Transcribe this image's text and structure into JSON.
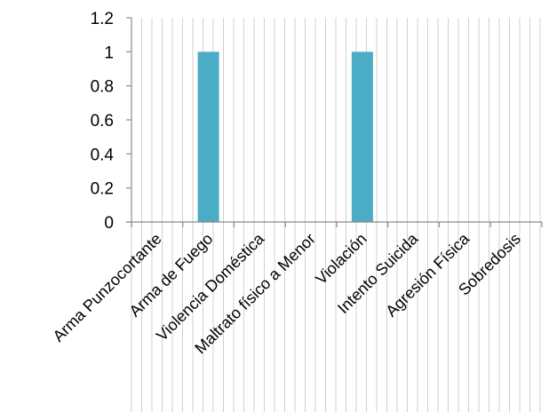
{
  "chart_data": {
    "type": "bar",
    "categories": [
      "Arma Punzocortante",
      "Arma de Fuego",
      "Violencia Doméstica",
      "Maltrato físico a Menor",
      "Violación",
      "Intento Suicida",
      "Agresión Física",
      "Sobredosis"
    ],
    "values": [
      0,
      1,
      0,
      0,
      1,
      0,
      0,
      0
    ],
    "ylim": [
      0,
      1.2
    ],
    "yticks": [
      "0",
      "0.2",
      "0.4",
      "0.6",
      "0.8",
      "1",
      "1.2"
    ],
    "grid": "vertical",
    "legend": "none",
    "colors": {
      "bar": "#4bacc6",
      "grid": "#d0d0d0",
      "axis": "#8c8c8c",
      "text": "#000000"
    }
  }
}
